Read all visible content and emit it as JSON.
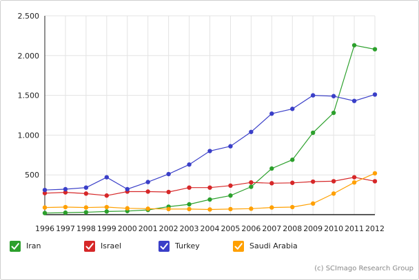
{
  "chart_data": {
    "type": "line",
    "title": "",
    "xlabel": "",
    "ylabel": "",
    "categories": [
      "1996",
      "1997",
      "1998",
      "1999",
      "2000",
      "2001",
      "2002",
      "2003",
      "2004",
      "2005",
      "2006",
      "2007",
      "2008",
      "2009",
      "2010",
      "2011",
      "2012"
    ],
    "y_ticks": [
      "500",
      "1.000",
      "1.500",
      "2.000",
      "2.500"
    ],
    "ylim": [
      0,
      2500
    ],
    "grid": true,
    "legend_position": "bottom-left",
    "series": [
      {
        "name": "Iran",
        "color": "#2ca02c",
        "values": [
          20,
          25,
          30,
          40,
          45,
          60,
          100,
          130,
          190,
          240,
          350,
          580,
          690,
          1030,
          1280,
          2130,
          2080
        ]
      },
      {
        "name": "Israel",
        "color": "#d62728",
        "values": [
          270,
          280,
          265,
          240,
          290,
          290,
          285,
          340,
          340,
          365,
          405,
          395,
          400,
          415,
          420,
          470,
          420
        ]
      },
      {
        "name": "Turkey",
        "color": "#3a3fc8",
        "values": [
          310,
          320,
          340,
          470,
          320,
          410,
          510,
          630,
          800,
          860,
          1040,
          1270,
          1330,
          1500,
          1490,
          1430,
          1510
        ]
      },
      {
        "name": "Saudi Arabia",
        "color": "#ffa000",
        "values": [
          90,
          95,
          90,
          95,
          80,
          75,
          70,
          70,
          65,
          70,
          75,
          90,
          95,
          140,
          265,
          405,
          520
        ]
      }
    ]
  },
  "credit": "(c) SCImago Research Group"
}
